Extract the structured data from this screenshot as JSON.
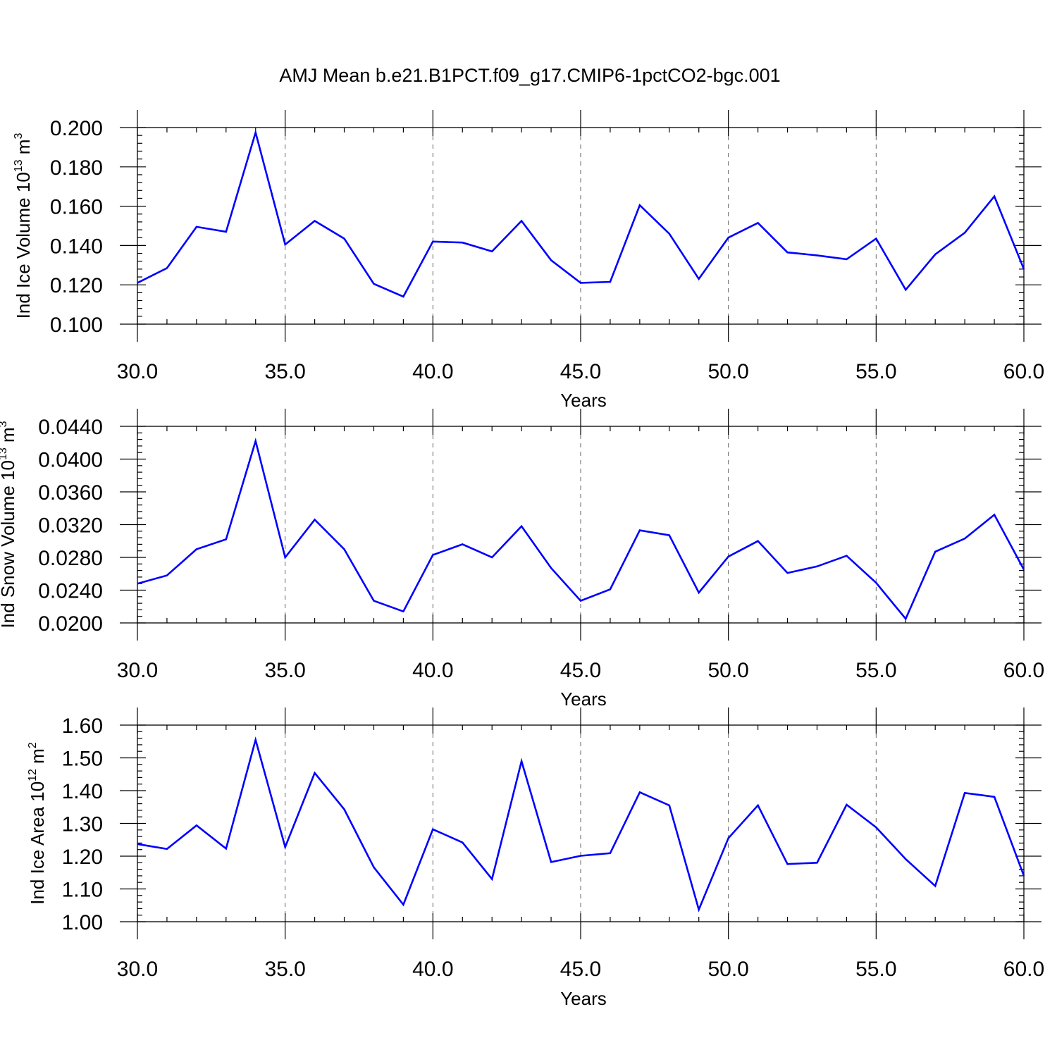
{
  "figure": {
    "title": "AMJ Mean b.e21.B1PCT.f09_g17.CMIP6-1pctCO2-bgc.001",
    "line_color": "#0000ff"
  },
  "chart_data": [
    {
      "type": "line",
      "xlabel": "Years",
      "ylabel": {
        "base": "Ind Ice Volume 10",
        "exponent": "13",
        "unit": " m",
        "unit_exponent": "3"
      },
      "xlim": [
        30,
        60
      ],
      "ylim": [
        0.1,
        0.2
      ],
      "xticks": [
        30,
        35,
        40,
        45,
        50,
        55,
        60
      ],
      "xtick_labels": [
        "30.0",
        "35.0",
        "40.0",
        "45.0",
        "50.0",
        "55.0",
        "60.0"
      ],
      "yticks": [
        0.1,
        0.12,
        0.14,
        0.16,
        0.18,
        0.2
      ],
      "ytick_labels": [
        "0.100",
        "0.120",
        "0.140",
        "0.160",
        "0.180",
        "0.200"
      ],
      "yminor_step": 0.004,
      "grid": "vertical-dashed",
      "series": [
        {
          "x": [
            30,
            31,
            32,
            33,
            34,
            35,
            36,
            37,
            38,
            39,
            40,
            41,
            42,
            43,
            44,
            45,
            46,
            47,
            48,
            49,
            50,
            51,
            52,
            53,
            54,
            55,
            56,
            57,
            58,
            59,
            60
          ],
          "values": [
            0.121,
            0.1285,
            0.1495,
            0.147,
            0.1975,
            0.1405,
            0.1525,
            0.1435,
            0.1205,
            0.114,
            0.142,
            0.1415,
            0.137,
            0.1525,
            0.1325,
            0.121,
            0.1215,
            0.1605,
            0.146,
            0.123,
            0.144,
            0.1515,
            0.1365,
            0.135,
            0.133,
            0.1435,
            0.1175,
            0.1355,
            0.1465,
            0.165,
            0.128
          ]
        }
      ]
    },
    {
      "type": "line",
      "xlabel": "Years",
      "ylabel": {
        "base": "Ind Snow Volume 10",
        "exponent": "13",
        "unit": " m",
        "unit_exponent": "3"
      },
      "xlim": [
        30,
        60
      ],
      "ylim": [
        0.02,
        0.044
      ],
      "xticks": [
        30,
        35,
        40,
        45,
        50,
        55,
        60
      ],
      "xtick_labels": [
        "30.0",
        "35.0",
        "40.0",
        "45.0",
        "50.0",
        "55.0",
        "60.0"
      ],
      "yticks": [
        0.02,
        0.024,
        0.028,
        0.032,
        0.036,
        0.04,
        0.044
      ],
      "ytick_labels": [
        "0.0200",
        "0.0240",
        "0.0280",
        "0.0320",
        "0.0360",
        "0.0400",
        "0.0440"
      ],
      "yminor_step": 0.0008,
      "grid": "vertical-dashed",
      "series": [
        {
          "x": [
            30,
            31,
            32,
            33,
            34,
            35,
            36,
            37,
            38,
            39,
            40,
            41,
            42,
            43,
            44,
            45,
            46,
            47,
            48,
            49,
            50,
            51,
            52,
            53,
            54,
            55,
            56,
            57,
            58,
            59,
            60
          ],
          "values": [
            0.0248,
            0.0258,
            0.029,
            0.0302,
            0.0422,
            0.028,
            0.0326,
            0.029,
            0.0227,
            0.0214,
            0.0283,
            0.0296,
            0.028,
            0.0318,
            0.0267,
            0.0227,
            0.0241,
            0.0313,
            0.0307,
            0.0237,
            0.0281,
            0.03,
            0.0261,
            0.0269,
            0.0282,
            0.0249,
            0.0205,
            0.0287,
            0.0303,
            0.0332,
            0.0265
          ]
        }
      ]
    },
    {
      "type": "line",
      "xlabel": "Years",
      "ylabel": {
        "base": "Ind Ice Area 10",
        "exponent": "12",
        "unit": " m",
        "unit_exponent": "2"
      },
      "xlim": [
        30,
        60
      ],
      "ylim": [
        1.0,
        1.6
      ],
      "xticks": [
        30,
        35,
        40,
        45,
        50,
        55,
        60
      ],
      "xtick_labels": [
        "30.0",
        "35.0",
        "40.0",
        "45.0",
        "50.0",
        "55.0",
        "60.0"
      ],
      "yticks": [
        1.0,
        1.1,
        1.2,
        1.3,
        1.4,
        1.5,
        1.6
      ],
      "ytick_labels": [
        "1.00",
        "1.10",
        "1.20",
        "1.30",
        "1.40",
        "1.50",
        "1.60"
      ],
      "yminor_step": 0.02,
      "grid": "vertical-dashed",
      "series": [
        {
          "x": [
            30,
            31,
            32,
            33,
            34,
            35,
            36,
            37,
            38,
            39,
            40,
            41,
            42,
            43,
            44,
            45,
            46,
            47,
            48,
            49,
            50,
            51,
            52,
            53,
            54,
            55,
            56,
            57,
            58,
            59,
            60
          ],
          "values": [
            1.237,
            1.222,
            1.294,
            1.223,
            1.555,
            1.228,
            1.454,
            1.343,
            1.166,
            1.052,
            1.282,
            1.242,
            1.13,
            1.49,
            1.182,
            1.201,
            1.209,
            1.395,
            1.355,
            1.037,
            1.255,
            1.355,
            1.176,
            1.18,
            1.357,
            1.288,
            1.191,
            1.109,
            1.393,
            1.381,
            1.14
          ]
        }
      ]
    }
  ]
}
